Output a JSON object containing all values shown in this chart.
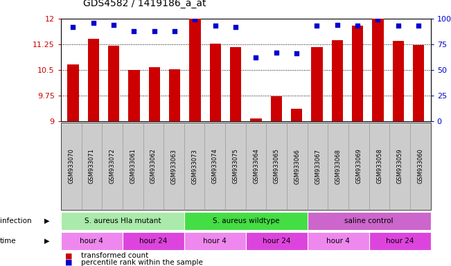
{
  "title": "GDS4582 / 1419186_a_at",
  "samples": [
    "GSM933070",
    "GSM933071",
    "GSM933072",
    "GSM933061",
    "GSM933062",
    "GSM933063",
    "GSM933073",
    "GSM933074",
    "GSM933075",
    "GSM933064",
    "GSM933065",
    "GSM933066",
    "GSM933067",
    "GSM933068",
    "GSM933069",
    "GSM933058",
    "GSM933059",
    "GSM933060"
  ],
  "transformed_count": [
    10.65,
    11.4,
    11.2,
    10.5,
    10.57,
    10.52,
    12.0,
    11.27,
    11.17,
    9.08,
    9.72,
    9.35,
    11.17,
    11.37,
    11.8,
    12.0,
    11.35,
    11.22
  ],
  "percentile_rank": [
    92,
    96,
    94,
    88,
    88,
    88,
    99,
    93,
    92,
    62,
    67,
    66,
    93,
    94,
    93,
    99,
    93,
    93
  ],
  "ylim_left": [
    9,
    12
  ],
  "ylim_right": [
    0,
    100
  ],
  "yticks_left": [
    9,
    9.75,
    10.5,
    11.25,
    12
  ],
  "yticks_right": [
    0,
    25,
    50,
    75,
    100
  ],
  "bar_color": "#cc0000",
  "dot_color": "#0000cc",
  "infection_groups": [
    {
      "label": "S. aureus Hla mutant",
      "start": 0,
      "end": 6,
      "color": "#aaeaaa"
    },
    {
      "label": "S. aureus wildtype",
      "start": 6,
      "end": 12,
      "color": "#44dd44"
    },
    {
      "label": "saline control",
      "start": 12,
      "end": 18,
      "color": "#cc66cc"
    }
  ],
  "time_groups": [
    {
      "label": "hour 4",
      "start": 0,
      "end": 3,
      "color": "#ee88ee"
    },
    {
      "label": "hour 24",
      "start": 3,
      "end": 6,
      "color": "#dd44dd"
    },
    {
      "label": "hour 4",
      "start": 6,
      "end": 9,
      "color": "#ee88ee"
    },
    {
      "label": "hour 24",
      "start": 9,
      "end": 12,
      "color": "#dd44dd"
    },
    {
      "label": "hour 4",
      "start": 12,
      "end": 15,
      "color": "#ee88ee"
    },
    {
      "label": "hour 24",
      "start": 15,
      "end": 18,
      "color": "#dd44dd"
    }
  ],
  "legend_items": [
    {
      "label": "transformed count",
      "color": "#cc0000"
    },
    {
      "label": "percentile rank within the sample",
      "color": "#0000cc"
    }
  ],
  "xtick_bg": "#cccccc",
  "xtick_fontsize": 6.0,
  "bar_width": 0.55
}
